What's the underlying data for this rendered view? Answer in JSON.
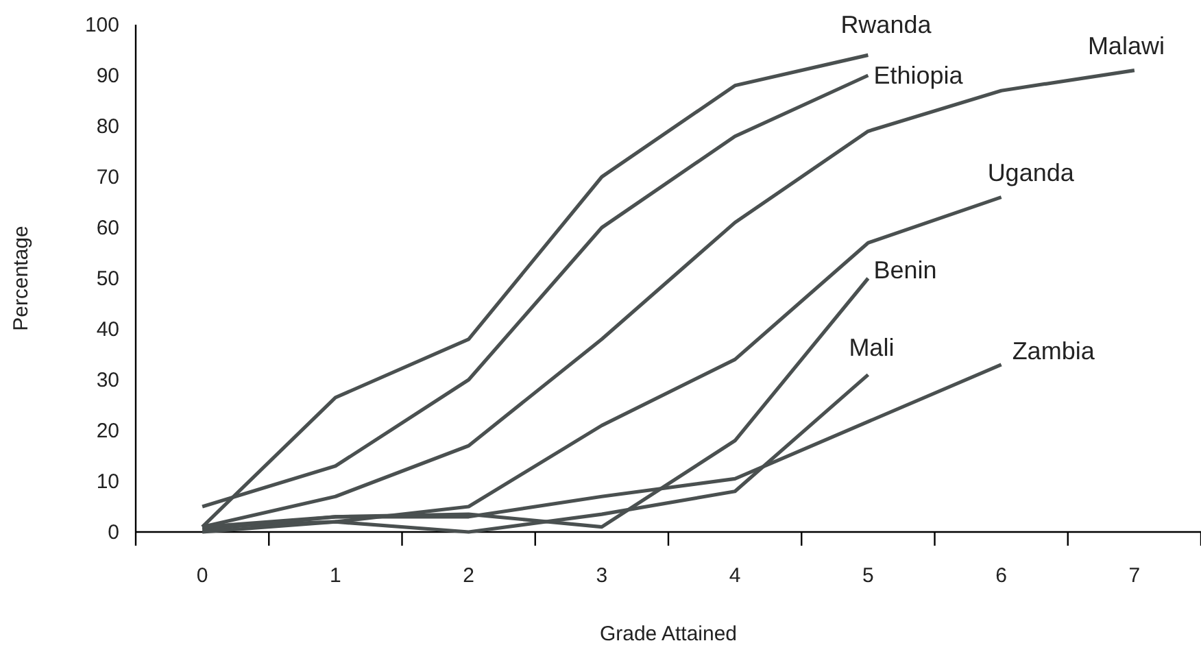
{
  "chart_data": {
    "type": "line",
    "xlabel": "Grade Attained",
    "ylabel": "Percentage",
    "categories": [
      "0",
      "1",
      "2",
      "3",
      "4",
      "5",
      "6",
      "7"
    ],
    "ylim": [
      0,
      100
    ],
    "yticks": [
      0,
      10,
      20,
      30,
      40,
      50,
      60,
      70,
      80,
      90,
      100
    ],
    "grid": false,
    "legend": false,
    "marker": "none",
    "line_style": "solid",
    "series": [
      {
        "name": "Rwanda",
        "color": "#4a5050",
        "values": [
          1,
          26.5,
          38,
          70,
          88,
          94,
          null,
          null
        ]
      },
      {
        "name": "Ethiopia",
        "color": "#4a5050",
        "values": [
          5,
          13,
          30,
          60,
          78,
          90,
          null,
          null
        ]
      },
      {
        "name": "Malawi",
        "color": "#4a5050",
        "values": [
          1,
          7,
          17,
          38,
          61,
          79,
          87,
          91
        ]
      },
      {
        "name": "Uganda",
        "color": "#4a5050",
        "values": [
          1,
          2,
          5,
          21,
          34,
          57,
          66,
          null
        ]
      },
      {
        "name": "Benin",
        "color": "#4a5050",
        "values": [
          0.5,
          3,
          3.5,
          1,
          18,
          50,
          null,
          null
        ]
      },
      {
        "name": "Mali",
        "color": "#4a5050",
        "values": [
          0,
          2,
          0,
          3.5,
          8,
          31,
          null,
          null
        ]
      },
      {
        "name": "Zambia",
        "color": "#4a5050",
        "values": [
          1,
          3,
          3,
          7,
          10.5,
          null,
          33,
          null
        ]
      }
    ]
  }
}
